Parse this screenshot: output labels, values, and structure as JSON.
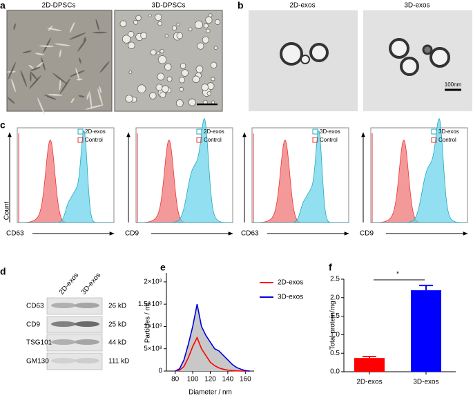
{
  "figure": {
    "a": {
      "label": "a",
      "images": [
        "2D-DPSCs",
        "3D-DPSCs"
      ]
    },
    "b": {
      "label": "b",
      "images": [
        "2D-exos",
        "3D-exos"
      ],
      "scale_bar": "100nm"
    },
    "c": {
      "label": "c",
      "y_axis": "Count",
      "panels": [
        {
          "marker": "CD63",
          "legend": [
            "2D-exos",
            "Control"
          ]
        },
        {
          "marker": "CD9",
          "legend": [
            "2D-exos",
            "Control"
          ]
        },
        {
          "marker": "CD63",
          "legend": [
            "3D-exos",
            "Control"
          ]
        },
        {
          "marker": "CD9",
          "legend": [
            "3D-exos",
            "Control"
          ]
        }
      ]
    },
    "d": {
      "label": "d",
      "columns": [
        "2D-exos",
        "3D-exos"
      ],
      "rows": [
        {
          "protein": "CD63",
          "size": "26 kD"
        },
        {
          "protein": "CD9",
          "size": "25 kD"
        },
        {
          "protein": "TSG101",
          "size": "44 kD"
        },
        {
          "protein": "GM130",
          "size": "111 kD"
        }
      ]
    }
  },
  "chart_data": [
    {
      "type": "line",
      "label": "e",
      "x_label": "Diameter / nm",
      "y_label": "Particles / mL",
      "x": [
        80,
        85,
        90,
        95,
        100,
        105,
        110,
        115,
        120,
        125,
        130,
        135,
        140,
        145,
        150,
        155,
        160,
        165
      ],
      "series": [
        {
          "name": "2D-exos",
          "color": "#ff0000",
          "values": [
            0,
            20000000,
            100000000,
            300000000,
            550000000,
            750000000,
            500000000,
            350000000,
            200000000,
            120000000,
            70000000,
            40000000,
            20000000,
            10000000,
            5000000,
            0,
            0,
            0
          ]
        },
        {
          "name": "3D-exos",
          "color": "#0000e0",
          "values": [
            0,
            50000000,
            250000000,
            600000000,
            1000000000,
            1500000000,
            1000000000,
            800000000,
            650000000,
            500000000,
            450000000,
            350000000,
            250000000,
            150000000,
            80000000,
            40000000,
            10000000,
            0
          ]
        }
      ],
      "xlim": [
        70,
        170
      ],
      "xticks": [
        80,
        100,
        120,
        140,
        160
      ],
      "ylim": [
        0,
        2200000000
      ],
      "yticks": [
        0,
        {
          "value": 500000000,
          "label": "5×10⁸"
        },
        {
          "value": 1000000000,
          "label": "1×10⁹"
        },
        {
          "value": 1500000000,
          "label": "1.5×10⁹"
        },
        {
          "value": 2000000000,
          "label": "2×10⁹"
        }
      ],
      "fill_color": "#c8c8c8"
    },
    {
      "type": "bar",
      "label": "f",
      "y_label": "Total protein/mg",
      "categories": [
        "2D-exos",
        "3D-exos"
      ],
      "values": [
        0.37,
        2.2
      ],
      "errors": [
        0.04,
        0.13
      ],
      "colors": [
        "#ff0000",
        "#0000ff"
      ],
      "ylim": [
        0,
        2.5
      ],
      "yticks": [
        {
          "value": 0,
          "label": "0.0"
        },
        0.5,
        {
          "value": 1,
          "label": "1.0"
        },
        1.5,
        {
          "value": 2,
          "label": "2.0"
        },
        2.5
      ],
      "significance": "*"
    }
  ]
}
